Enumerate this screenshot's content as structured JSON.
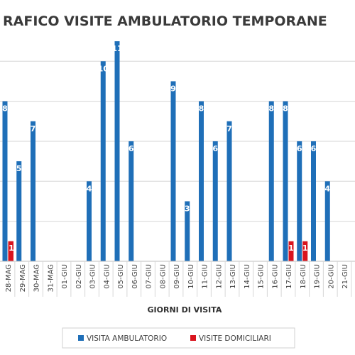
{
  "chart_data": {
    "type": "bar",
    "title": "RAFICO VISITE AMBULATORIO TEMPORANE",
    "xlabel": "GIORNI DI VISITA",
    "ylabel": "",
    "ylim": [
      0,
      11.5
    ],
    "grid": true,
    "legend_position": "bottom",
    "categories": [
      "28-MAG",
      "29-MAG",
      "30-MAG",
      "31-MAG",
      "01-GIU",
      "02-GIU",
      "03-GIU",
      "04-GIU",
      "05-GIU",
      "06-GIU",
      "07-GIU",
      "08-GIU",
      "09-GIU",
      "10-GIU",
      "11-GIU",
      "12-GIU",
      "13-GIU",
      "14-GIU",
      "15-GIU",
      "16-GIU",
      "17-GIU",
      "18-GIU",
      "19-GIU",
      "20-GIU",
      "21-GIU"
    ],
    "series": [
      {
        "name": "VISITA AMBULATORIO",
        "color": "#1f6fb8",
        "values": [
          8,
          5,
          7,
          null,
          null,
          null,
          4,
          10,
          11,
          6,
          null,
          null,
          9,
          3,
          8,
          6,
          7,
          null,
          null,
          8,
          8,
          6,
          6,
          4,
          null
        ],
        "labels": [
          "8",
          "5",
          "7",
          "",
          "",
          "",
          "4",
          "10",
          "11",
          "6",
          "",
          "",
          "9",
          "3",
          "8",
          "6",
          "7",
          "",
          "",
          "8",
          "8",
          "6",
          "6",
          "4",
          ""
        ]
      },
      {
        "name": "VISITE DOMICILIARI",
        "color": "#d9141e",
        "values": [
          1,
          0,
          0,
          null,
          null,
          null,
          0,
          0,
          0,
          0,
          null,
          null,
          0,
          0,
          0,
          0,
          0,
          null,
          null,
          0,
          1,
          1,
          0,
          0,
          null
        ],
        "labels": [
          "1",
          "0",
          "0",
          "",
          "",
          "",
          "0",
          "0",
          "0",
          "0",
          "",
          "",
          "0",
          "0",
          "0",
          "0",
          "0",
          "",
          "",
          "0",
          "1",
          "1",
          "0",
          "0",
          ""
        ]
      }
    ],
    "partial_left_labels": [
      "0",
      "1"
    ]
  }
}
